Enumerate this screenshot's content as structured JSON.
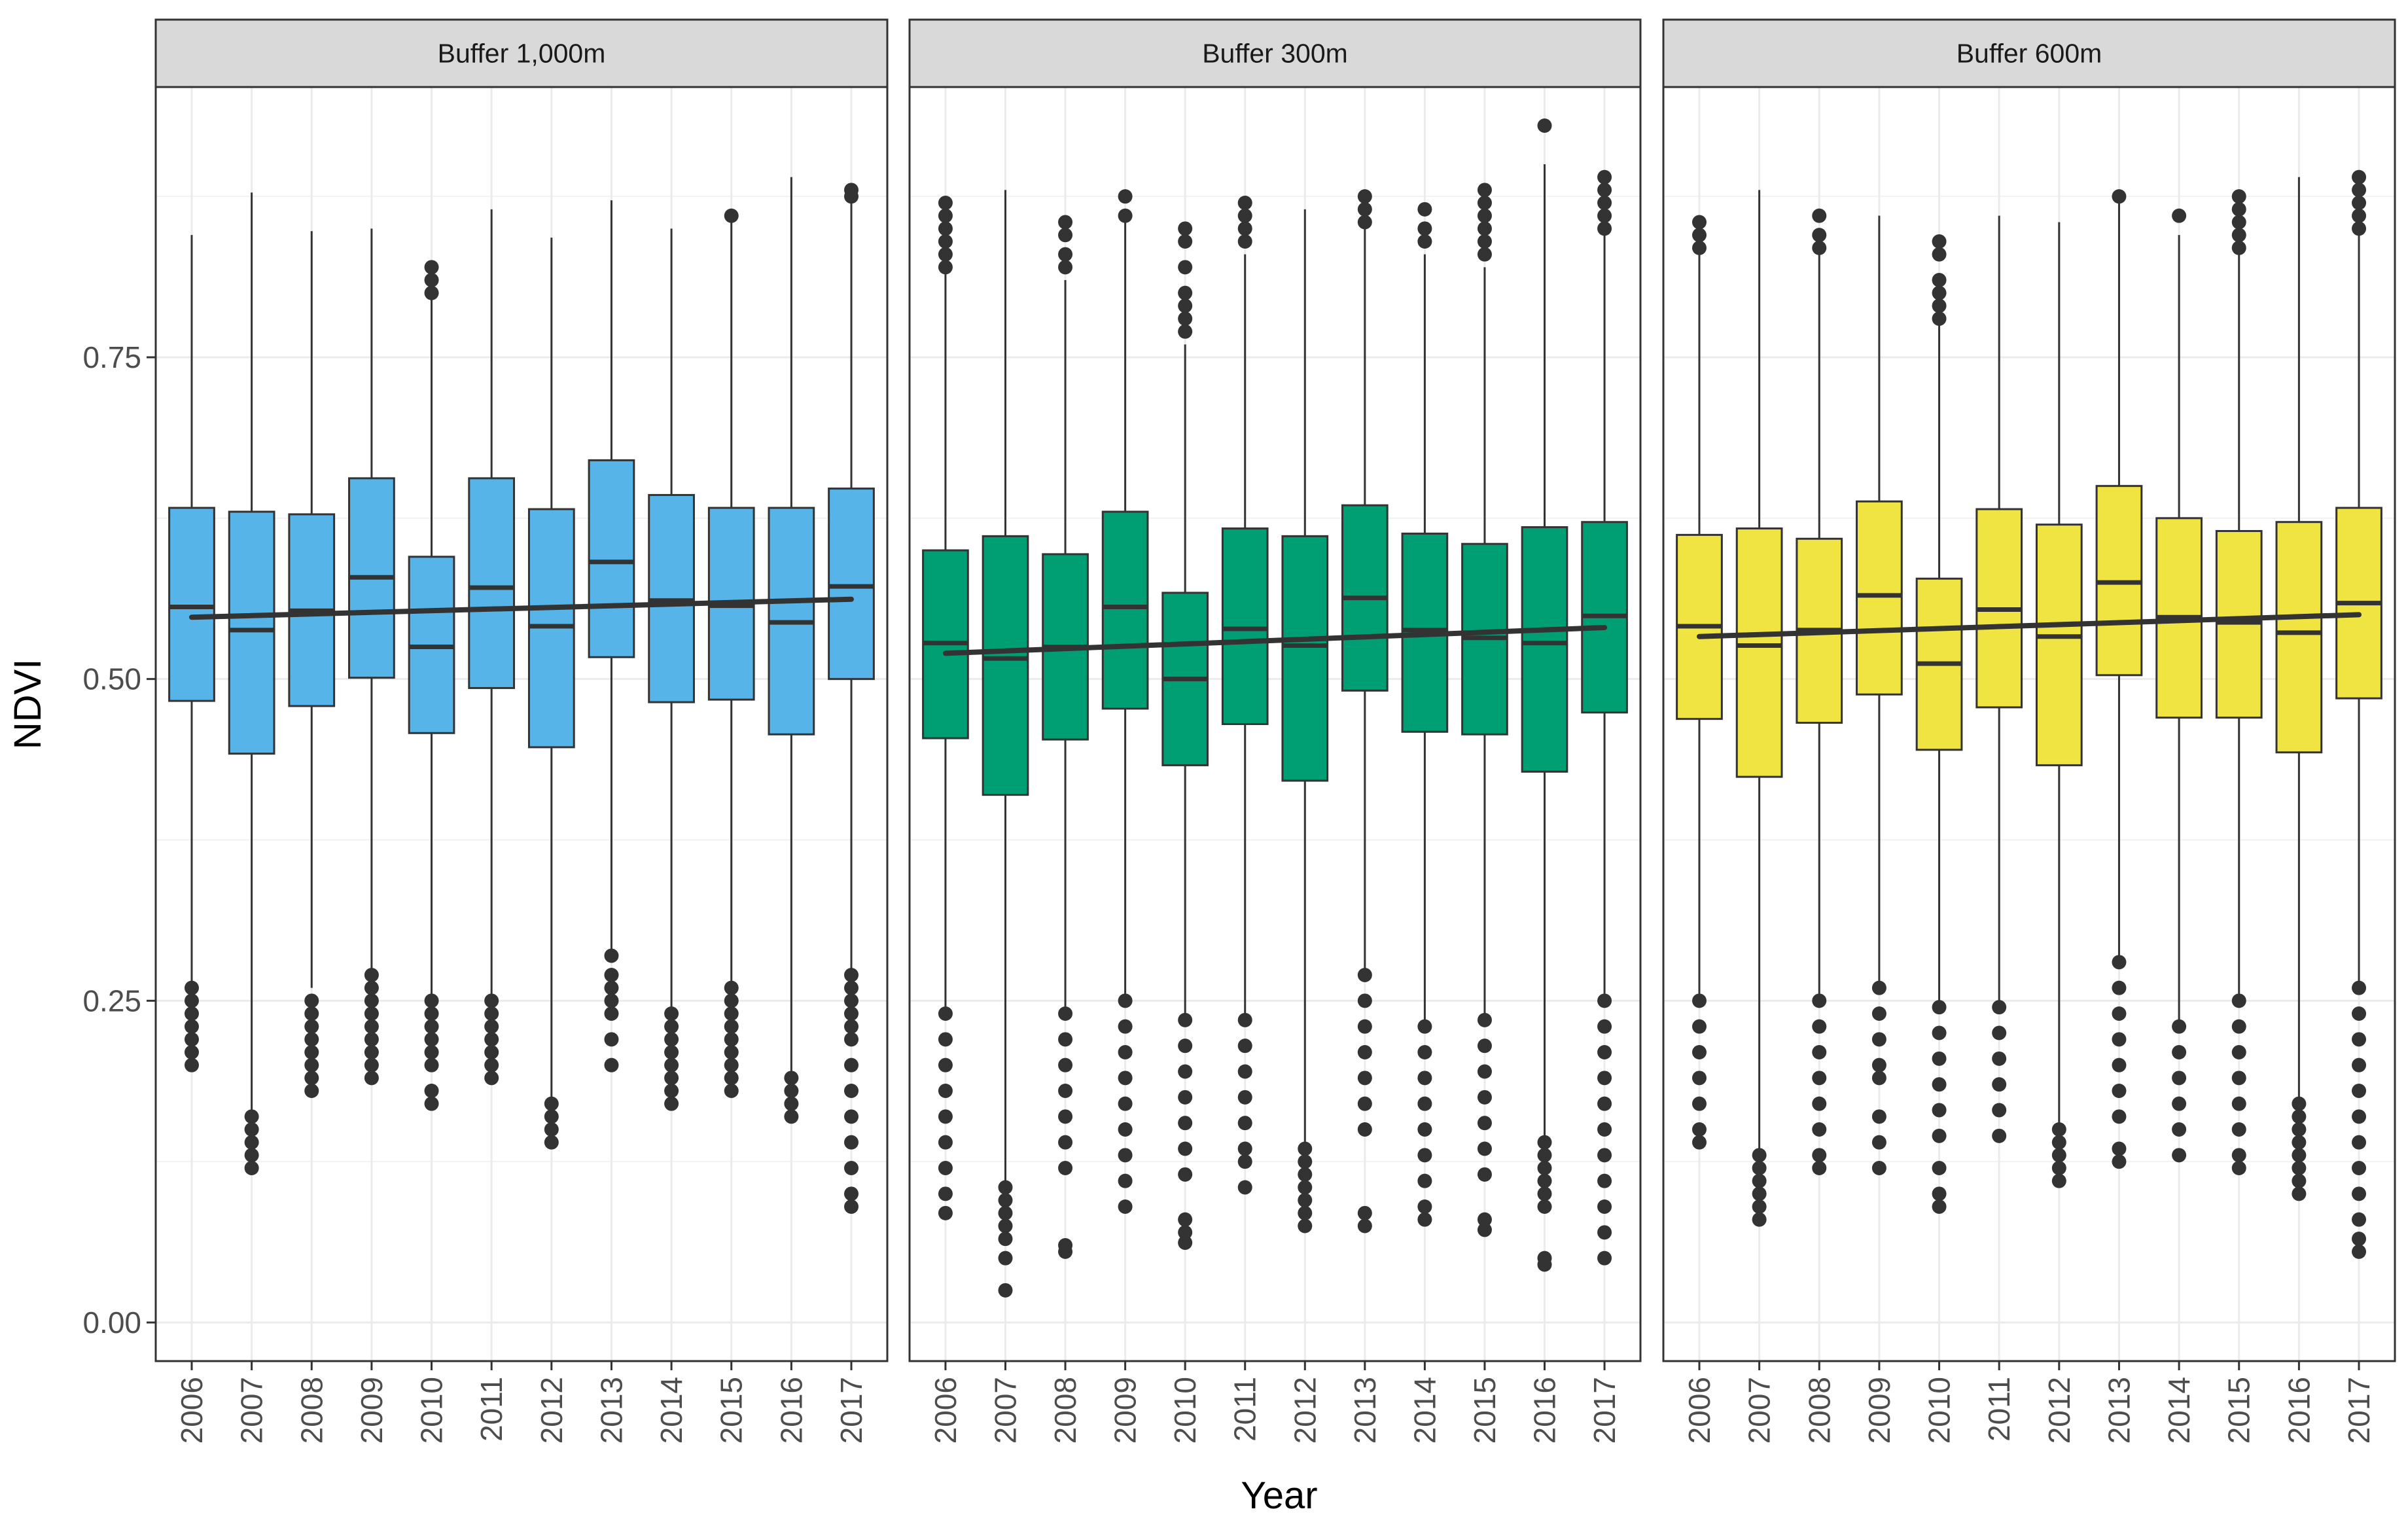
{
  "chart_data": {
    "type": "boxplot",
    "xlabel": "Year",
    "ylabel": "NDVI",
    "ylim": [
      -0.03,
      0.96
    ],
    "yticks": [
      0.0,
      0.25,
      0.5,
      0.75
    ],
    "ytick_labels": [
      "0.00",
      "0.25",
      "0.50",
      "0.75"
    ],
    "categories": [
      "2006",
      "2007",
      "2008",
      "2009",
      "2010",
      "2011",
      "2012",
      "2013",
      "2014",
      "2015",
      "2016",
      "2017"
    ],
    "theme": "bw",
    "grid": true,
    "legend": "none",
    "panels": [
      {
        "strip": "Buffer 1,000m",
        "fill": "#56B4E9",
        "trend": [
          0.548,
          0.562
        ],
        "boxes": [
          {
            "q1": 0.483,
            "median": 0.556,
            "q3": 0.633,
            "whisker_low": 0.26,
            "whisker_high": 0.845,
            "outliers": [
              0.26,
              0.25,
              0.24,
              0.23,
              0.22,
              0.21,
              0.2
            ]
          },
          {
            "q1": 0.442,
            "median": 0.538,
            "q3": 0.63,
            "whisker_low": 0.165,
            "whisker_high": 0.878,
            "outliers": [
              0.16,
              0.15,
              0.14,
              0.13,
              0.12
            ]
          },
          {
            "q1": 0.479,
            "median": 0.553,
            "q3": 0.628,
            "whisker_low": 0.26,
            "whisker_high": 0.848,
            "outliers": [
              0.25,
              0.24,
              0.23,
              0.22,
              0.21,
              0.2,
              0.19,
              0.18
            ]
          },
          {
            "q1": 0.501,
            "median": 0.579,
            "q3": 0.656,
            "whisker_low": 0.27,
            "whisker_high": 0.85,
            "outliers": [
              0.27,
              0.26,
              0.25,
              0.24,
              0.23,
              0.22,
              0.21,
              0.2,
              0.19
            ]
          },
          {
            "q1": 0.458,
            "median": 0.525,
            "q3": 0.595,
            "whisker_low": 0.255,
            "whisker_high": 0.795,
            "outliers": [
              0.82,
              0.81,
              0.8,
              0.25,
              0.24,
              0.23,
              0.22,
              0.21,
              0.2,
              0.18,
              0.17
            ]
          },
          {
            "q1": 0.493,
            "median": 0.571,
            "q3": 0.656,
            "whisker_low": 0.25,
            "whisker_high": 0.865,
            "outliers": [
              0.25,
              0.24,
              0.23,
              0.22,
              0.21,
              0.2,
              0.19
            ]
          },
          {
            "q1": 0.447,
            "median": 0.541,
            "q3": 0.632,
            "whisker_low": 0.17,
            "whisker_high": 0.843,
            "outliers": [
              0.17,
              0.16,
              0.15,
              0.14
            ]
          },
          {
            "q1": 0.517,
            "median": 0.591,
            "q3": 0.67,
            "whisker_low": 0.29,
            "whisker_high": 0.872,
            "outliers": [
              0.285,
              0.27,
              0.26,
              0.25,
              0.24,
              0.22,
              0.2
            ]
          },
          {
            "q1": 0.482,
            "median": 0.561,
            "q3": 0.643,
            "whisker_low": 0.24,
            "whisker_high": 0.85,
            "outliers": [
              0.24,
              0.23,
              0.22,
              0.21,
              0.2,
              0.19,
              0.18,
              0.17
            ]
          },
          {
            "q1": 0.484,
            "median": 0.557,
            "q3": 0.633,
            "whisker_low": 0.265,
            "whisker_high": 0.855,
            "outliers": [
              0.86,
              0.26,
              0.25,
              0.24,
              0.23,
              0.22,
              0.21,
              0.2,
              0.19,
              0.18
            ]
          },
          {
            "q1": 0.457,
            "median": 0.544,
            "q3": 0.633,
            "whisker_low": 0.195,
            "whisker_high": 0.89,
            "outliers": [
              0.19,
              0.18,
              0.17,
              0.16
            ]
          },
          {
            "q1": 0.5,
            "median": 0.572,
            "q3": 0.648,
            "whisker_low": 0.275,
            "whisker_high": 0.875,
            "outliers": [
              0.88,
              0.875,
              0.27,
              0.26,
              0.25,
              0.24,
              0.23,
              0.22,
              0.2,
              0.18,
              0.16,
              0.14,
              0.12,
              0.1,
              0.09
            ]
          }
        ]
      },
      {
        "strip": "Buffer 300m",
        "fill": "#009E73",
        "trend": [
          0.52,
          0.54
        ],
        "boxes": [
          {
            "q1": 0.454,
            "median": 0.528,
            "q3": 0.6,
            "whisker_low": 0.24,
            "whisker_high": 0.82,
            "outliers": [
              0.87,
              0.86,
              0.85,
              0.84,
              0.83,
              0.82,
              0.24,
              0.22,
              0.2,
              0.18,
              0.16,
              0.14,
              0.12,
              0.1,
              0.085
            ]
          },
          {
            "q1": 0.41,
            "median": 0.516,
            "q3": 0.611,
            "whisker_low": 0.11,
            "whisker_high": 0.88,
            "outliers": [
              0.105,
              0.095,
              0.085,
              0.075,
              0.065,
              0.05,
              0.025
            ]
          },
          {
            "q1": 0.453,
            "median": 0.525,
            "q3": 0.597,
            "whisker_low": 0.24,
            "whisker_high": 0.81,
            "outliers": [
              0.855,
              0.845,
              0.83,
              0.82,
              0.24,
              0.22,
              0.2,
              0.18,
              0.16,
              0.14,
              0.12,
              0.06,
              0.055
            ]
          },
          {
            "q1": 0.477,
            "median": 0.556,
            "q3": 0.63,
            "whisker_low": 0.255,
            "whisker_high": 0.855,
            "outliers": [
              0.875,
              0.86,
              0.25,
              0.23,
              0.21,
              0.19,
              0.17,
              0.15,
              0.13,
              0.11,
              0.09
            ]
          },
          {
            "q1": 0.433,
            "median": 0.5,
            "q3": 0.567,
            "whisker_low": 0.24,
            "whisker_high": 0.76,
            "outliers": [
              0.85,
              0.84,
              0.82,
              0.8,
              0.79,
              0.78,
              0.77,
              0.235,
              0.215,
              0.195,
              0.175,
              0.155,
              0.135,
              0.115,
              0.08,
              0.07,
              0.062
            ]
          },
          {
            "q1": 0.465,
            "median": 0.539,
            "q3": 0.617,
            "whisker_low": 0.24,
            "whisker_high": 0.83,
            "outliers": [
              0.87,
              0.86,
              0.85,
              0.84,
              0.235,
              0.215,
              0.195,
              0.175,
              0.155,
              0.135,
              0.125,
              0.105
            ]
          },
          {
            "q1": 0.421,
            "median": 0.526,
            "q3": 0.611,
            "whisker_low": 0.14,
            "whisker_high": 0.865,
            "outliers": [
              0.135,
              0.125,
              0.115,
              0.105,
              0.095,
              0.085,
              0.075
            ]
          },
          {
            "q1": 0.491,
            "median": 0.563,
            "q3": 0.635,
            "whisker_low": 0.275,
            "whisker_high": 0.85,
            "outliers": [
              0.875,
              0.865,
              0.855,
              0.27,
              0.25,
              0.23,
              0.21,
              0.19,
              0.17,
              0.15,
              0.085,
              0.075
            ]
          },
          {
            "q1": 0.459,
            "median": 0.538,
            "q3": 0.613,
            "whisker_low": 0.235,
            "whisker_high": 0.83,
            "outliers": [
              0.865,
              0.85,
              0.84,
              0.23,
              0.21,
              0.19,
              0.17,
              0.15,
              0.13,
              0.11,
              0.09,
              0.08
            ]
          },
          {
            "q1": 0.457,
            "median": 0.532,
            "q3": 0.605,
            "whisker_low": 0.24,
            "whisker_high": 0.82,
            "outliers": [
              0.88,
              0.87,
              0.86,
              0.85,
              0.84,
              0.83,
              0.235,
              0.215,
              0.195,
              0.175,
              0.155,
              0.135,
              0.115,
              0.08,
              0.072
            ]
          },
          {
            "q1": 0.428,
            "median": 0.528,
            "q3": 0.618,
            "whisker_low": 0.145,
            "whisker_high": 0.9,
            "outliers": [
              0.93,
              0.14,
              0.13,
              0.12,
              0.11,
              0.1,
              0.09,
              0.05,
              0.045
            ]
          },
          {
            "q1": 0.474,
            "median": 0.549,
            "q3": 0.622,
            "whisker_low": 0.25,
            "whisker_high": 0.85,
            "outliers": [
              0.89,
              0.88,
              0.87,
              0.86,
              0.85,
              0.25,
              0.23,
              0.21,
              0.19,
              0.17,
              0.15,
              0.13,
              0.11,
              0.09,
              0.07,
              0.05
            ]
          }
        ]
      },
      {
        "strip": "Buffer 600m",
        "fill": "#F0E442",
        "trend": [
          0.533,
          0.55
        ],
        "boxes": [
          {
            "q1": 0.469,
            "median": 0.541,
            "q3": 0.612,
            "whisker_low": 0.255,
            "whisker_high": 0.83,
            "outliers": [
              0.855,
              0.845,
              0.835,
              0.25,
              0.23,
              0.21,
              0.19,
              0.17,
              0.15,
              0.14
            ]
          },
          {
            "q1": 0.424,
            "median": 0.526,
            "q3": 0.617,
            "whisker_low": 0.135,
            "whisker_high": 0.88,
            "outliers": [
              0.13,
              0.12,
              0.11,
              0.1,
              0.09,
              0.08
            ]
          },
          {
            "q1": 0.466,
            "median": 0.538,
            "q3": 0.609,
            "whisker_low": 0.25,
            "whisker_high": 0.83,
            "outliers": [
              0.86,
              0.845,
              0.835,
              0.25,
              0.23,
              0.21,
              0.19,
              0.17,
              0.15,
              0.13,
              0.12
            ]
          },
          {
            "q1": 0.488,
            "median": 0.565,
            "q3": 0.638,
            "whisker_low": 0.26,
            "whisker_high": 0.86,
            "outliers": [
              0.26,
              0.24,
              0.22,
              0.2,
              0.19,
              0.16,
              0.14,
              0.12
            ]
          },
          {
            "q1": 0.445,
            "median": 0.512,
            "q3": 0.578,
            "whisker_low": 0.25,
            "whisker_high": 0.775,
            "outliers": [
              0.84,
              0.83,
              0.81,
              0.8,
              0.79,
              0.78,
              0.245,
              0.225,
              0.205,
              0.185,
              0.165,
              0.145,
              0.12,
              0.1,
              0.09
            ]
          },
          {
            "q1": 0.478,
            "median": 0.554,
            "q3": 0.632,
            "whisker_low": 0.25,
            "whisker_high": 0.86,
            "outliers": [
              0.245,
              0.225,
              0.205,
              0.185,
              0.165,
              0.145
            ]
          },
          {
            "q1": 0.433,
            "median": 0.533,
            "q3": 0.62,
            "whisker_low": 0.155,
            "whisker_high": 0.855,
            "outliers": [
              0.15,
              0.14,
              0.13,
              0.12,
              0.11
            ]
          },
          {
            "q1": 0.503,
            "median": 0.575,
            "q3": 0.65,
            "whisker_low": 0.285,
            "whisker_high": 0.87,
            "outliers": [
              0.875,
              0.28,
              0.26,
              0.24,
              0.22,
              0.2,
              0.18,
              0.16,
              0.135,
              0.125
            ]
          },
          {
            "q1": 0.47,
            "median": 0.548,
            "q3": 0.625,
            "whisker_low": 0.235,
            "whisker_high": 0.845,
            "outliers": [
              0.86,
              0.23,
              0.21,
              0.19,
              0.17,
              0.15,
              0.13
            ]
          },
          {
            "q1": 0.47,
            "median": 0.544,
            "q3": 0.615,
            "whisker_low": 0.255,
            "whisker_high": 0.83,
            "outliers": [
              0.875,
              0.865,
              0.855,
              0.845,
              0.835,
              0.25,
              0.23,
              0.21,
              0.19,
              0.17,
              0.15,
              0.13,
              0.12
            ]
          },
          {
            "q1": 0.443,
            "median": 0.536,
            "q3": 0.622,
            "whisker_low": 0.175,
            "whisker_high": 0.89,
            "outliers": [
              0.17,
              0.16,
              0.15,
              0.14,
              0.13,
              0.12,
              0.11,
              0.1
            ]
          },
          {
            "q1": 0.485,
            "median": 0.559,
            "q3": 0.633,
            "whisker_low": 0.26,
            "whisker_high": 0.85,
            "outliers": [
              0.89,
              0.88,
              0.87,
              0.86,
              0.85,
              0.26,
              0.24,
              0.22,
              0.2,
              0.18,
              0.16,
              0.14,
              0.12,
              0.1,
              0.08,
              0.065,
              0.055
            ]
          }
        ]
      }
    ]
  }
}
